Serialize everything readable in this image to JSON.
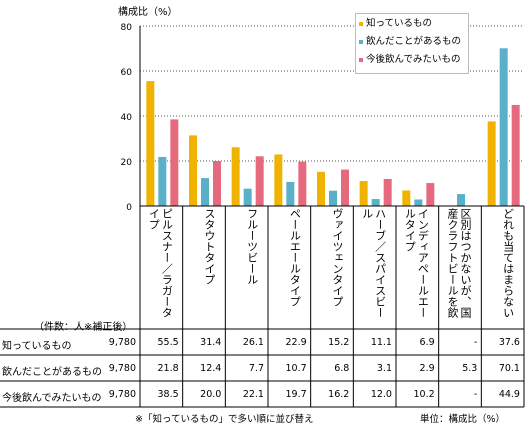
{
  "chart_data": {
    "type": "bar",
    "ylabel": "構成比（%）",
    "ylim": [
      0,
      80
    ],
    "yticks": [
      "0",
      "20",
      "40",
      "60",
      "80"
    ],
    "grid": "horizontal dotted",
    "legend_placement": "top-right",
    "categories": [
      "ピルスナー／ラガータイプ",
      "スタウトタイプ",
      "フルーツビール",
      "ペールエールタイプ",
      "ヴァイツェンタイプ",
      "ハーブ／スパイスビール",
      "インディアペールエールタイプ",
      "区別はつかないが、国産クラフトビールを飲んだことがある",
      "どれも当てはまらない"
    ],
    "series": [
      {
        "name": "知っているもの",
        "color": "#f0b400",
        "count": "9,780",
        "values": [
          55.5,
          31.4,
          26.1,
          22.9,
          15.2,
          11.1,
          6.9,
          null,
          37.6
        ],
        "labels": [
          "55.5",
          "31.4",
          "26.1",
          "22.9",
          "15.2",
          "11.1",
          "6.9",
          "-",
          "37.6"
        ]
      },
      {
        "name": "飲んだことがあるもの",
        "color": "#5ab0c8",
        "count": "9,780",
        "values": [
          21.8,
          12.4,
          7.7,
          10.7,
          6.8,
          3.1,
          2.9,
          5.3,
          70.1
        ],
        "labels": [
          "21.8",
          "12.4",
          "7.7",
          "10.7",
          "6.8",
          "3.1",
          "2.9",
          "5.3",
          "70.1"
        ]
      },
      {
        "name": "今後飲んでみたいもの",
        "color": "#e66a7e",
        "count": "9,780",
        "values": [
          38.5,
          20.0,
          22.1,
          19.7,
          16.2,
          12.0,
          10.2,
          null,
          44.9
        ],
        "labels": [
          "38.5",
          "20.0",
          "22.1",
          "19.7",
          "16.2",
          "12.0",
          "10.2",
          "-",
          "44.9"
        ]
      }
    ],
    "table_header": "（件数：人※補正後）",
    "footnote": "※「知っているもの」で多い順に並び替え",
    "unit_note": "単位：構成比（%）"
  }
}
